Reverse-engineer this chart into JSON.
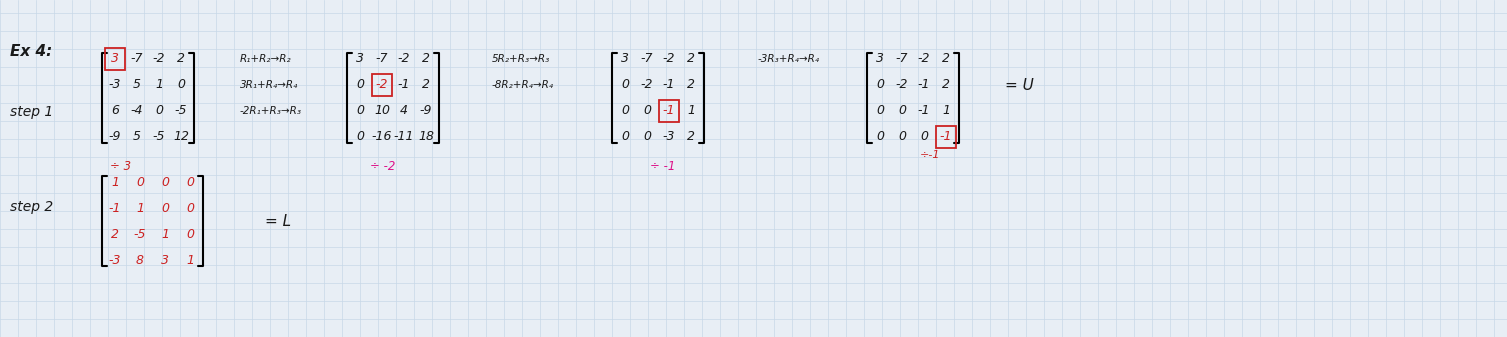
{
  "bg_color": "#e8eef5",
  "grid_color": "#c8d8e8",
  "mat1": [
    [
      "3",
      "-7",
      "-2",
      "2"
    ],
    [
      "-3",
      "5",
      "1",
      "0"
    ],
    [
      "6",
      "-4",
      "0",
      "-5"
    ],
    [
      "-9",
      "5",
      "-5",
      "12"
    ]
  ],
  "mat2": [
    [
      "3",
      "-7",
      "-2",
      "2"
    ],
    [
      "0",
      "-2",
      "-1",
      "2"
    ],
    [
      "0",
      "10",
      "4",
      "-9"
    ],
    [
      "0",
      "-16",
      "-11",
      "18"
    ]
  ],
  "mat3": [
    [
      "3",
      "-7",
      "-2",
      "2"
    ],
    [
      "0",
      "-2",
      "-1",
      "2"
    ],
    [
      "0",
      "0",
      "-1",
      "1"
    ],
    [
      "0",
      "0",
      "-3",
      "2"
    ]
  ],
  "mat4": [
    [
      "3",
      "-7",
      "-2",
      "2"
    ],
    [
      "0",
      "-2",
      "-1",
      "2"
    ],
    [
      "0",
      "0",
      "-1",
      "1"
    ],
    [
      "0",
      "0",
      "0",
      "-1"
    ]
  ],
  "mat_L": [
    [
      "1",
      "0",
      "0",
      "0"
    ],
    [
      "-1",
      "1",
      "0",
      "0"
    ],
    [
      "2",
      "-5",
      "1",
      "0"
    ],
    [
      "-3",
      "8",
      "3",
      "1"
    ]
  ],
  "title": "Ex 4:",
  "step1": "step 1",
  "step2": "step 2",
  "eq_U": "= U",
  "eq_L": "= L",
  "div1": "÷ 3",
  "div2": "÷ -2",
  "div3": "÷ -1",
  "div4": "÷-1",
  "ops1a": "R₁+R₂→R₂",
  "ops1b": "3R₁+R₄→R₄",
  "ops1c": "-2R₁+R₃→R₃",
  "ops2a": "5R₂+R₃→R₃",
  "ops2b": "-8R₂+R₄→R₄",
  "ops3a": "-3R₃+R₄→R₄",
  "black": "#1a1a1a",
  "red": "#cc2222",
  "pink": "#dd1188"
}
